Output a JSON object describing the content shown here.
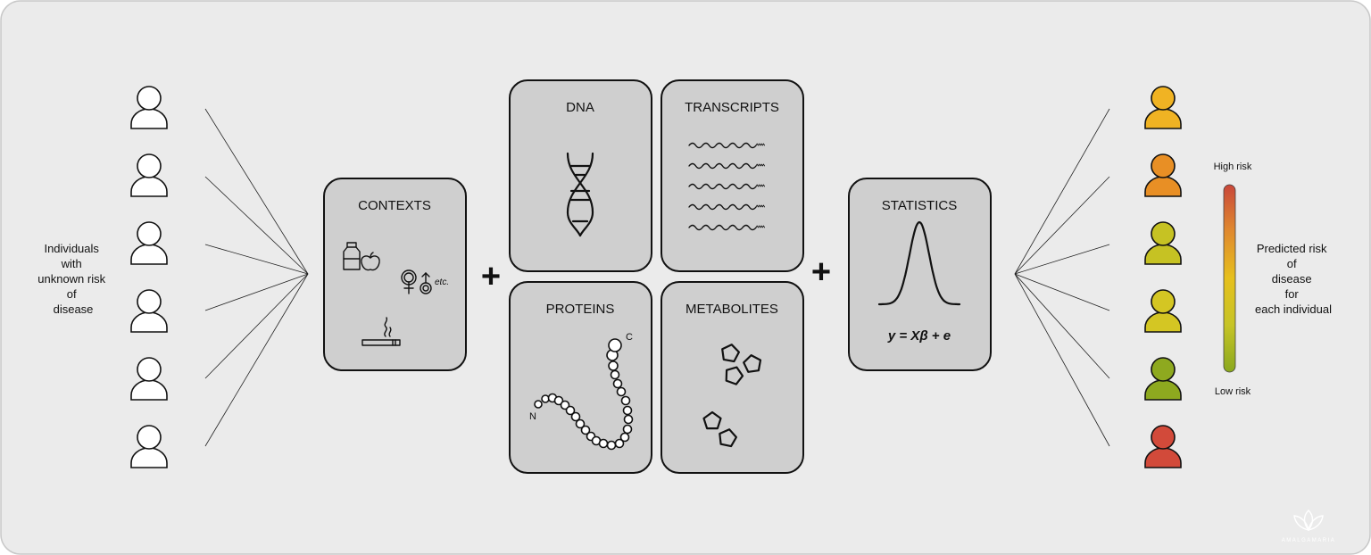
{
  "left_caption": [
    "Individuals",
    "with",
    "unknown risk",
    "of",
    "disease"
  ],
  "contexts": {
    "title": "CONTEXTS",
    "etc_label": "etc."
  },
  "omics": {
    "dna": "DNA",
    "transcripts": "TRANSCRIPTS",
    "proteins": "PROTEINS",
    "metabolites": "METABOLITES",
    "protein_n_label": "N",
    "protein_c_label": "C"
  },
  "plus_sign": "+",
  "statistics": {
    "title": "STATISTICS",
    "formula": "y = Xβ + e"
  },
  "risk_scale": {
    "high_label": "High risk",
    "low_label": "Low risk",
    "caption": [
      "Predicted risk",
      "of",
      "disease",
      "for",
      "each individual"
    ],
    "gradient_colors": [
      "#c9473a",
      "#e08a2e",
      "#e6c01c",
      "#c6c426",
      "#8aa81e"
    ]
  },
  "output_person_colors": [
    "#f0b323",
    "#e88f25",
    "#c6c223",
    "#d4c623",
    "#8ea91f",
    "#d24a3a"
  ],
  "logo_text": "AMALGAMARIA",
  "colors": {
    "background": "#ebebeb",
    "panel": "#cfcfcf",
    "border": "#111111"
  }
}
